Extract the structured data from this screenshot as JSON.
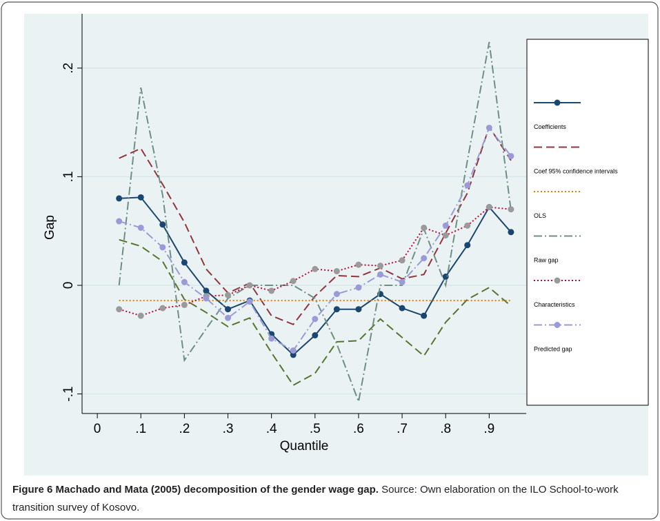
{
  "chart_data": {
    "type": "line",
    "x_label": "Quantile",
    "y_label": "Gap",
    "x": [
      0.05,
      0.1,
      0.15,
      0.2,
      0.25,
      0.3,
      0.35,
      0.4,
      0.45,
      0.5,
      0.55,
      0.6,
      0.65,
      0.7,
      0.75,
      0.8,
      0.85,
      0.9,
      0.95
    ],
    "xlim": [
      -0.035,
      0.985
    ],
    "ylim": [
      -0.118,
      0.25
    ],
    "xticks": [
      0,
      {
        "value": 0.1,
        "label": ".1"
      },
      {
        "value": 0.2,
        "label": ".2"
      },
      {
        "value": 0.3,
        "label": ".3"
      },
      {
        "value": 0.4,
        "label": ".4"
      },
      {
        "value": 0.5,
        "label": ".5"
      },
      {
        "value": 0.6,
        "label": ".6"
      },
      {
        "value": 0.7,
        "label": ".7"
      },
      {
        "value": 0.8,
        "label": ".8"
      },
      {
        "value": 0.9,
        "label": ".9"
      }
    ],
    "yticks": [
      {
        "value": -0.1,
        "label": "-.1"
      },
      0,
      {
        "value": 0.1,
        "label": ".1"
      },
      {
        "value": 0.2,
        "label": ".2"
      }
    ],
    "grid": true,
    "legend": "right",
    "series": [
      {
        "name": "Coefficients",
        "color": "#1a476f",
        "dash": "solid",
        "marker": true,
        "marker_color": "#1a476f",
        "values": [
          0.08,
          0.081,
          0.056,
          0.021,
          -0.005,
          -0.022,
          -0.014,
          -0.045,
          -0.064,
          -0.046,
          -0.022,
          -0.022,
          -0.008,
          -0.021,
          -0.028,
          0.008,
          0.037,
          0.072,
          0.049
        ]
      },
      {
        "name": "Coef 95% confidence intervals",
        "color": "#90353b",
        "dash": "dash",
        "marker": false,
        "values": [
          0.117,
          0.126,
          0.093,
          0.058,
          0.015,
          -0.007,
          0.002,
          -0.028,
          -0.036,
          -0.01,
          0.009,
          0.008,
          0.016,
          0.006,
          0.01,
          0.048,
          0.085,
          0.146,
          0.115
        ],
        "lower_color": "#55752f",
        "lower_values": [
          0.042,
          0.036,
          0.022,
          -0.013,
          -0.025,
          -0.038,
          -0.03,
          -0.062,
          -0.092,
          -0.081,
          -0.052,
          -0.051,
          -0.031,
          -0.048,
          -0.065,
          -0.034,
          -0.013,
          -0.002,
          -0.019
        ]
      },
      {
        "name": "OLS",
        "color": "#e37e00",
        "dash": "dot",
        "marker": false,
        "values": [
          -0.014,
          -0.014,
          -0.014,
          -0.014,
          -0.014,
          -0.014,
          -0.014,
          -0.014,
          -0.014,
          -0.014,
          -0.014,
          -0.014,
          -0.014,
          -0.014,
          -0.014,
          -0.014,
          -0.014,
          -0.014,
          -0.014
        ]
      },
      {
        "name": "Raw gap",
        "color": "#6e8e84",
        "dash": "dashdot",
        "marker": false,
        "values": [
          0,
          0.182,
          0.083,
          -0.069,
          -0.04,
          -0.012,
          0,
          0,
          0,
          -0.012,
          -0.054,
          -0.107,
          0,
          0,
          0.052,
          0,
          0.115,
          0.224,
          0.069
        ]
      },
      {
        "name": "Characteristics",
        "color": "#c10534",
        "dash": "dot",
        "marker": true,
        "marker_color": "#9a9a9a",
        "values": [
          -0.022,
          -0.028,
          -0.021,
          -0.018,
          -0.01,
          -0.009,
          0,
          -0.005,
          0.004,
          0.015,
          0.013,
          0.019,
          0.018,
          0.023,
          0.053,
          0.046,
          0.055,
          0.072,
          0.07
        ]
      },
      {
        "name": "Predicted gap",
        "color": "#9a9ad6",
        "dash": "dashdot",
        "marker": true,
        "marker_color": "#9a9ad6",
        "values": [
          0.059,
          0.053,
          0.035,
          0.003,
          -0.012,
          -0.03,
          -0.015,
          -0.049,
          -0.06,
          -0.031,
          -0.008,
          -0.002,
          0.01,
          0.003,
          0.025,
          0.055,
          0.092,
          0.145,
          0.119
        ]
      }
    ]
  },
  "caption": {
    "label": "Figure 6 Machado and Mata (2005) decomposition of the gender wage gap.",
    "text": "Source: Own elaboration on the ILO School-to-work transition survey of Kosovo."
  }
}
